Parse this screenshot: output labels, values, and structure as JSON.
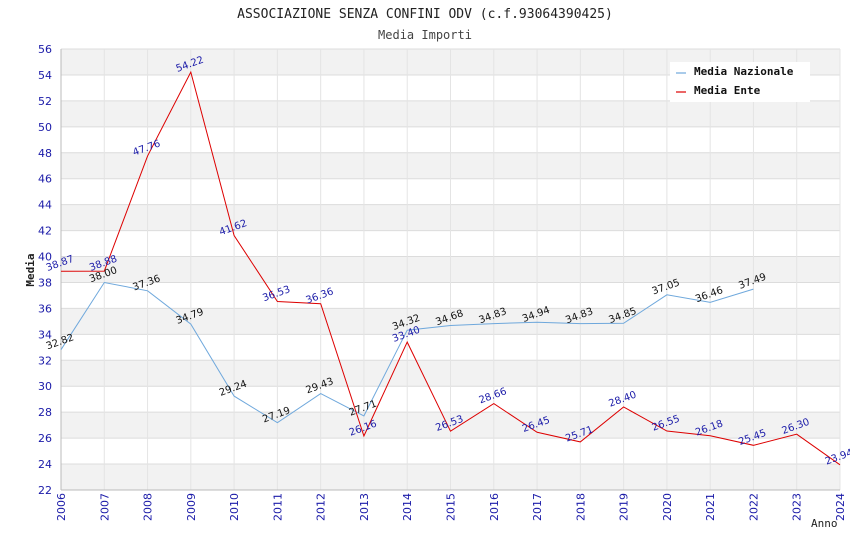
{
  "chart_data": {
    "type": "line",
    "title": "ASSOCIAZIONE SENZA CONFINI ODV (c.f.93064390425)",
    "subtitle": "Media Importi",
    "xlabel": "Anno",
    "ylabel": "Media",
    "ylim": [
      22,
      56
    ],
    "yticks": [
      22,
      24,
      26,
      28,
      30,
      32,
      34,
      36,
      38,
      40,
      42,
      44,
      46,
      48,
      50,
      52,
      54,
      56
    ],
    "categories": [
      "2006",
      "2007",
      "2008",
      "2009",
      "2010",
      "2011",
      "2012",
      "2013",
      "2014",
      "2015",
      "2016",
      "2017",
      "2018",
      "2019",
      "2020",
      "2021",
      "2022",
      "2023",
      "2024"
    ],
    "grid": "horizontal",
    "legend_position": "top-right",
    "series": [
      {
        "name": "Media Nazionale",
        "color": "#6fa8dc",
        "values": [
          32.82,
          38.0,
          37.36,
          34.79,
          29.24,
          27.19,
          29.43,
          27.71,
          34.32,
          34.68,
          34.83,
          34.94,
          34.83,
          34.85,
          37.05,
          36.46,
          37.49,
          null,
          null
        ],
        "labels": [
          "32.82",
          "38.00",
          "37.36",
          "34.79",
          "29.24",
          "27.19",
          "29.43",
          "27.71",
          "34.32",
          "34.68",
          "34.83",
          "34.94",
          "34.83",
          "34.85",
          "37.05",
          "36.46",
          "37.49",
          null,
          null
        ]
      },
      {
        "name": "Media Ente",
        "color": "#dd0000",
        "values": [
          38.87,
          38.88,
          47.76,
          54.22,
          41.62,
          36.53,
          36.36,
          26.16,
          33.4,
          26.53,
          28.66,
          26.45,
          25.71,
          28.4,
          26.55,
          26.18,
          25.45,
          26.3,
          23.94
        ],
        "labels": [
          "38.87",
          "38.88",
          "47.76",
          "54.22",
          "41.62",
          "36.53",
          "36.36",
          "26.16",
          "33.40",
          "26.53",
          "28.66",
          "26.45",
          "25.71",
          "28.40",
          "26.55",
          "26.18",
          "25.45",
          "26.30",
          "23.94"
        ]
      }
    ]
  }
}
